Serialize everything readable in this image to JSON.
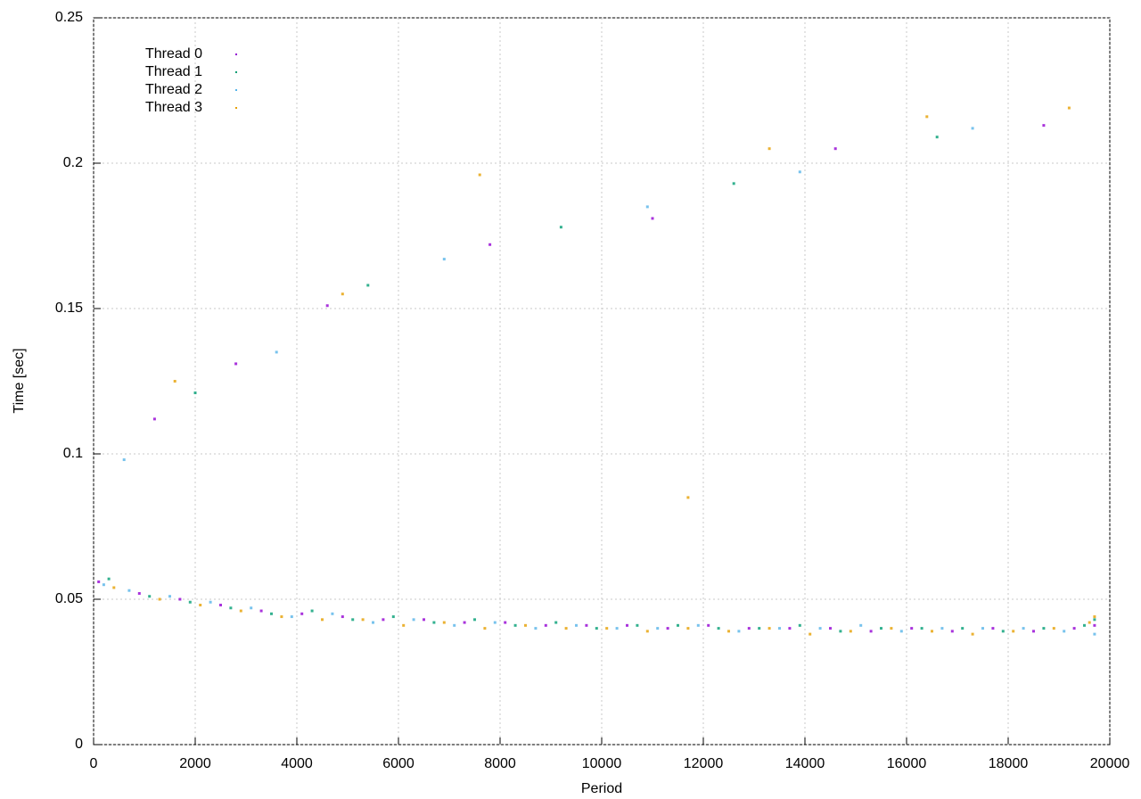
{
  "chart_data": {
    "type": "scatter",
    "x_label": "Period",
    "y_label": "Time [sec]",
    "xlim": [
      0,
      20000
    ],
    "ylim": [
      0,
      0.25
    ],
    "xticks": [
      0,
      2000,
      4000,
      6000,
      8000,
      10000,
      12000,
      14000,
      16000,
      18000,
      20000
    ],
    "yticks": [
      0,
      0.05,
      0.1,
      0.15,
      0.2,
      0.25
    ],
    "grid": true,
    "legend": "upper-left",
    "series": [
      {
        "name": "Thread 0",
        "color": "#9400d3",
        "x": [
          100,
          900,
          1700,
          2500,
          3300,
          4100,
          4900,
          5700,
          6500,
          7300,
          8100,
          8900,
          9700,
          10500,
          11300,
          12100,
          12900,
          13700,
          14500,
          15300,
          16100,
          16900,
          17700,
          18500,
          19300,
          19700,
          1200,
          2800,
          4600,
          7800,
          11000,
          14600,
          18700
        ],
        "values": [
          0.056,
          0.052,
          0.05,
          0.048,
          0.046,
          0.045,
          0.044,
          0.043,
          0.043,
          0.042,
          0.042,
          0.041,
          0.041,
          0.041,
          0.04,
          0.041,
          0.04,
          0.04,
          0.04,
          0.039,
          0.04,
          0.039,
          0.04,
          0.039,
          0.04,
          0.041,
          0.112,
          0.131,
          0.151,
          0.172,
          0.181,
          0.205,
          0.213
        ]
      },
      {
        "name": "Thread 1",
        "color": "#009e73",
        "x": [
          300,
          1100,
          1900,
          2700,
          3500,
          4300,
          5100,
          5900,
          6700,
          7500,
          8300,
          9100,
          9900,
          10700,
          11500,
          12300,
          13100,
          13900,
          14700,
          15500,
          16300,
          17100,
          17900,
          18700,
          19500,
          19700,
          2000,
          5400,
          9200,
          12600,
          16600
        ],
        "values": [
          0.057,
          0.051,
          0.049,
          0.047,
          0.045,
          0.046,
          0.043,
          0.044,
          0.042,
          0.043,
          0.041,
          0.042,
          0.04,
          0.041,
          0.041,
          0.04,
          0.04,
          0.041,
          0.039,
          0.04,
          0.04,
          0.04,
          0.039,
          0.04,
          0.041,
          0.043,
          0.121,
          0.158,
          0.178,
          0.193,
          0.209
        ]
      },
      {
        "name": "Thread 2",
        "color": "#56b4e9",
        "x": [
          200,
          700,
          1500,
          2300,
          3100,
          3900,
          4700,
          5500,
          6300,
          7100,
          7900,
          8700,
          9500,
          10300,
          11100,
          11900,
          12700,
          13500,
          14300,
          15100,
          15900,
          16700,
          17500,
          18300,
          19100,
          19700,
          600,
          3600,
          6900,
          10900,
          13900,
          17300
        ],
        "values": [
          0.055,
          0.053,
          0.051,
          0.049,
          0.047,
          0.044,
          0.045,
          0.042,
          0.043,
          0.041,
          0.042,
          0.04,
          0.041,
          0.04,
          0.04,
          0.041,
          0.039,
          0.04,
          0.04,
          0.041,
          0.039,
          0.04,
          0.04,
          0.04,
          0.039,
          0.038,
          0.098,
          0.135,
          0.167,
          0.185,
          0.197,
          0.212
        ]
      },
      {
        "name": "Thread 3",
        "color": "#e69f00",
        "x": [
          400,
          1300,
          2100,
          2900,
          3700,
          4500,
          5300,
          6100,
          6900,
          7700,
          8500,
          9300,
          10100,
          10900,
          11700,
          12500,
          13300,
          14100,
          14900,
          15700,
          16500,
          17300,
          18100,
          18900,
          19600,
          19700,
          1600,
          4900,
          7600,
          11700,
          13300,
          16400,
          19200
        ],
        "values": [
          0.054,
          0.05,
          0.048,
          0.046,
          0.044,
          0.043,
          0.043,
          0.041,
          0.042,
          0.04,
          0.041,
          0.04,
          0.04,
          0.039,
          0.04,
          0.039,
          0.04,
          0.038,
          0.039,
          0.04,
          0.039,
          0.038,
          0.039,
          0.04,
          0.042,
          0.044,
          0.125,
          0.155,
          0.196,
          0.085,
          0.205,
          0.216,
          0.219
        ]
      }
    ]
  }
}
